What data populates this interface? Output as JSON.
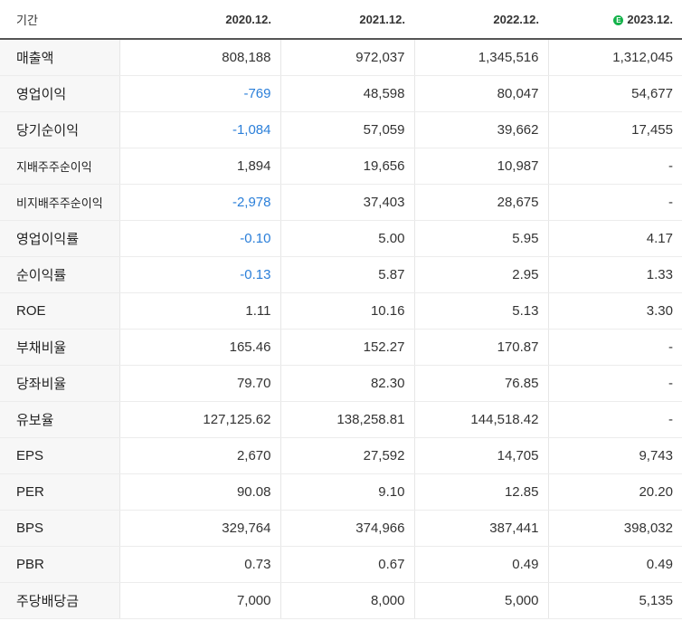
{
  "header": {
    "label": "기간",
    "periods": [
      "2020.12.",
      "2021.12.",
      "2022.12.",
      "2023.12."
    ],
    "estimate_badge": "E"
  },
  "colors": {
    "negative": "#2b7fd9",
    "estimate_badge": "#14b24a"
  },
  "rows": [
    {
      "label": "매출액",
      "values": [
        "808,188",
        "972,037",
        "1,345,516",
        "1,312,045"
      ]
    },
    {
      "label": "영업이익",
      "values": [
        "-769",
        "48,598",
        "80,047",
        "54,677"
      ]
    },
    {
      "label": "당기순이익",
      "values": [
        "-1,084",
        "57,059",
        "39,662",
        "17,455"
      ]
    },
    {
      "label": "지배주주순이익",
      "values": [
        "1,894",
        "19,656",
        "10,987",
        "-"
      ]
    },
    {
      "label": "비지배주주순이익",
      "values": [
        "-2,978",
        "37,403",
        "28,675",
        "-"
      ]
    },
    {
      "label": "영업이익률",
      "values": [
        "-0.10",
        "5.00",
        "5.95",
        "4.17"
      ]
    },
    {
      "label": "순이익률",
      "values": [
        "-0.13",
        "5.87",
        "2.95",
        "1.33"
      ]
    },
    {
      "label": "ROE",
      "values": [
        "1.11",
        "10.16",
        "5.13",
        "3.30"
      ]
    },
    {
      "label": "부채비율",
      "values": [
        "165.46",
        "152.27",
        "170.87",
        "-"
      ]
    },
    {
      "label": "당좌비율",
      "values": [
        "79.70",
        "82.30",
        "76.85",
        "-"
      ]
    },
    {
      "label": "유보율",
      "values": [
        "127,125.62",
        "138,258.81",
        "144,518.42",
        "-"
      ]
    },
    {
      "label": "EPS",
      "values": [
        "2,670",
        "27,592",
        "14,705",
        "9,743"
      ]
    },
    {
      "label": "PER",
      "values": [
        "90.08",
        "9.10",
        "12.85",
        "20.20"
      ]
    },
    {
      "label": "BPS",
      "values": [
        "329,764",
        "374,966",
        "387,441",
        "398,032"
      ]
    },
    {
      "label": "PBR",
      "values": [
        "0.73",
        "0.67",
        "0.49",
        "0.49"
      ]
    },
    {
      "label": "주당배당금",
      "values": [
        "7,000",
        "8,000",
        "5,000",
        "5,135"
      ]
    }
  ]
}
